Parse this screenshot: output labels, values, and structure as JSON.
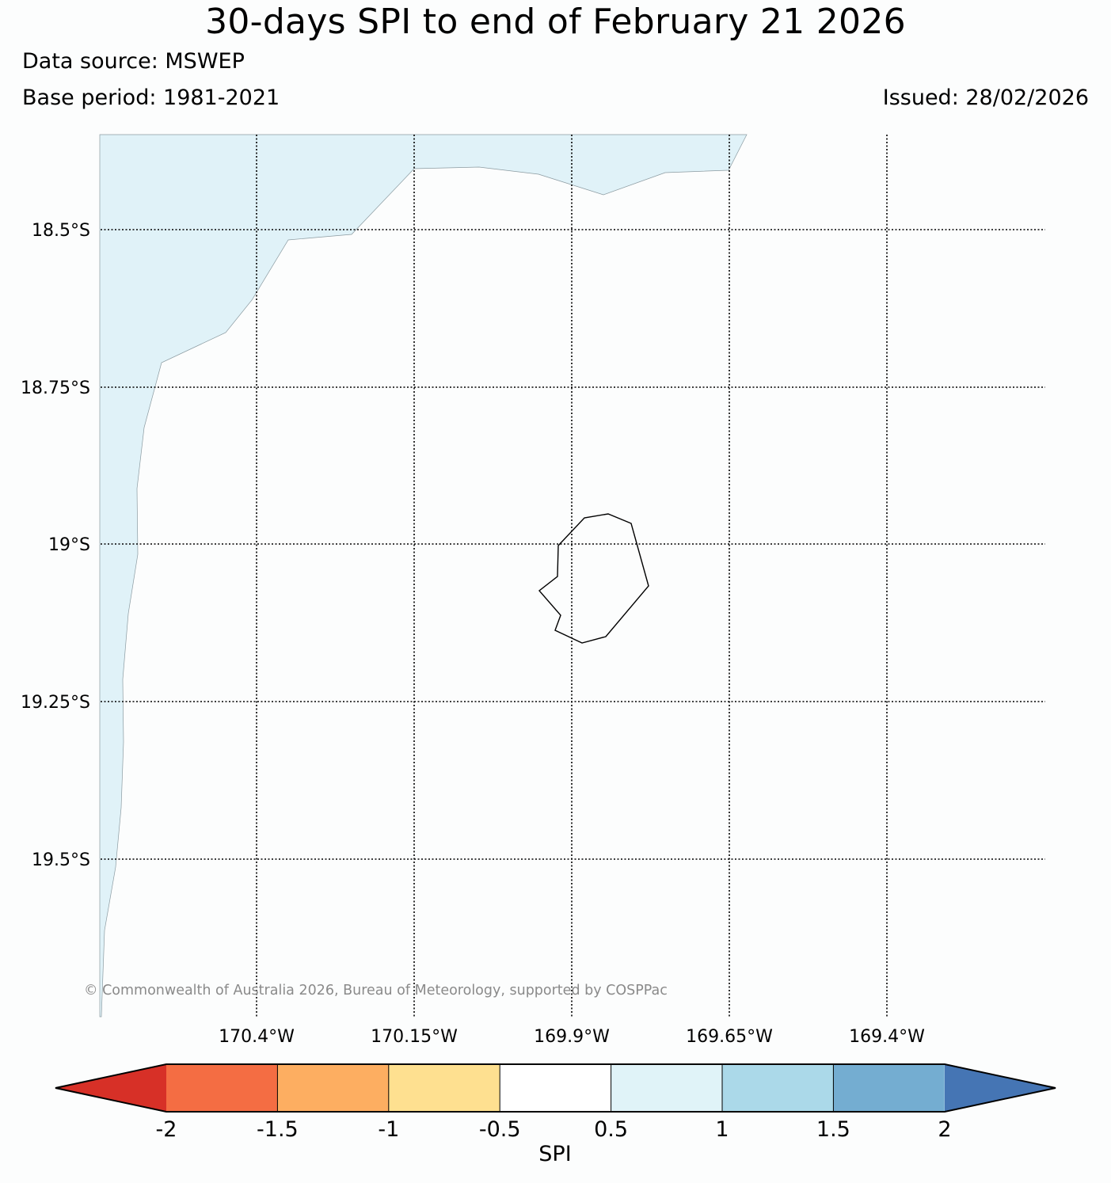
{
  "header": {
    "title": "30-days SPI to end of February 21 2026",
    "data_source": "Data source: MSWEP",
    "base_period": "Base period: 1981-2021",
    "issued": "Issued: 28/02/2026"
  },
  "map": {
    "lat_labels": [
      "18.5°S",
      "18.75°S",
      "19°S",
      "19.25°S",
      "19.5°S"
    ],
    "lon_labels": [
      "170.4°W",
      "170.15°W",
      "169.9°W",
      "169.65°W",
      "169.4°W"
    ],
    "island_name": "",
    "shaded_region_class": "0.5 to 1",
    "copyright": "© Commonwealth of Australia 2026, Bureau of Meteorology, supported by COSPPac"
  },
  "colorbar": {
    "label": "SPI",
    "ticks": [
      "-2",
      "-1.5",
      "-1",
      "-0.5",
      "0.5",
      "1",
      "1.5",
      "2"
    ],
    "colors": {
      "below_min": "#d73027",
      "bins": [
        "#f46d43",
        "#fdae61",
        "#fee090",
        "#ffffff",
        "#e0f3f8",
        "#abd9e9",
        "#74add1"
      ],
      "above_max": "#4575b4"
    }
  }
}
